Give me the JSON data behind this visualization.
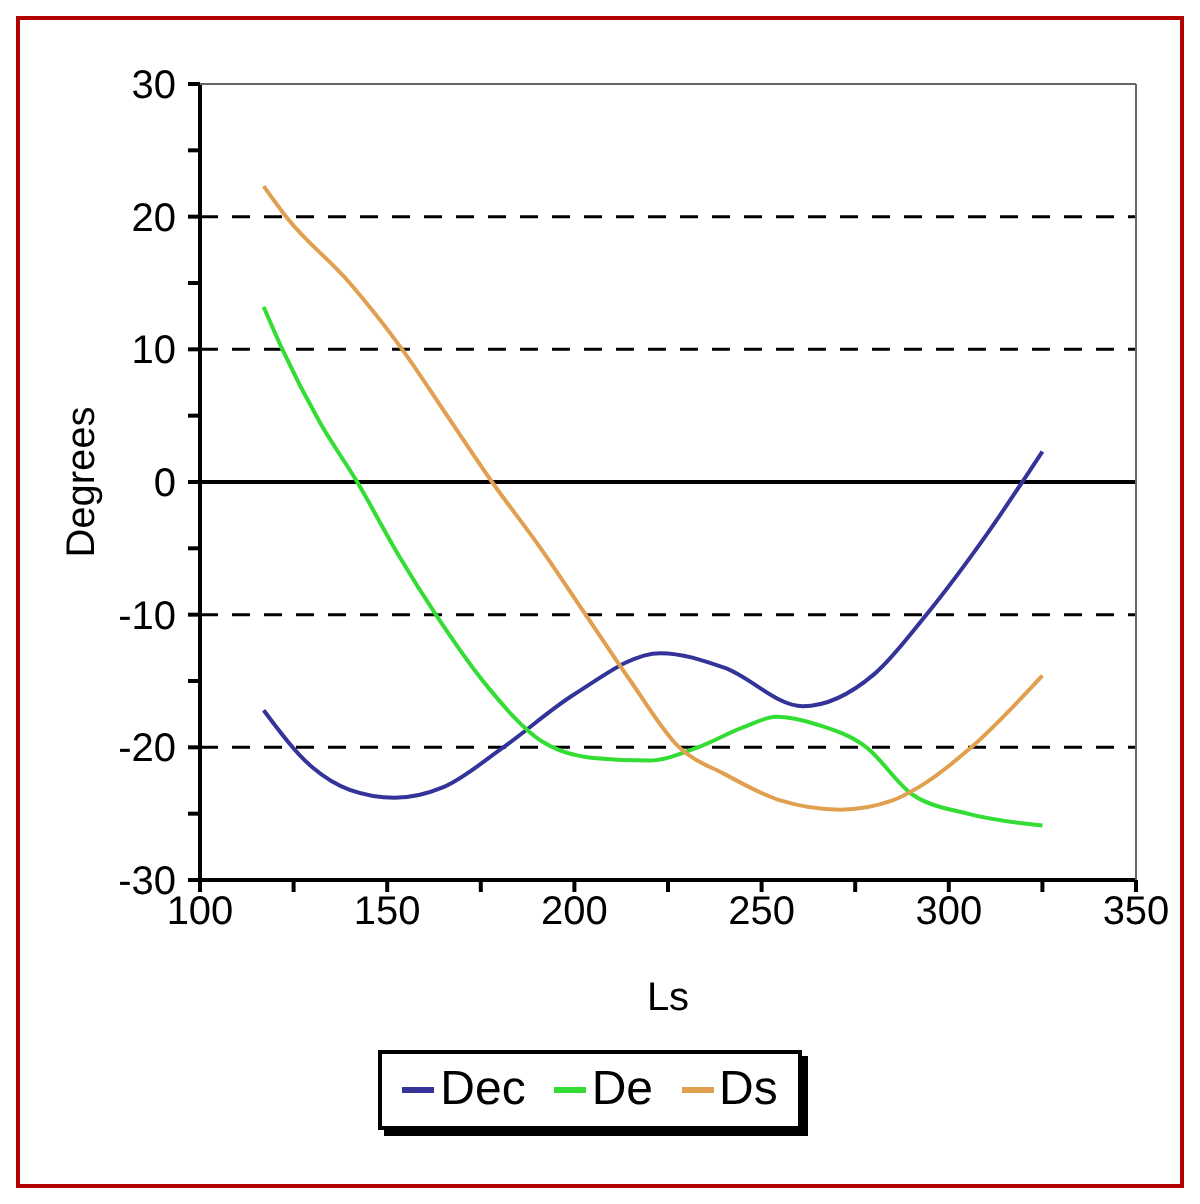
{
  "chart_data": {
    "type": "line",
    "xlabel": "Ls",
    "ylabel": "Degrees",
    "xlim": [
      100,
      350
    ],
    "ylim": [
      -30,
      30
    ],
    "xticks": [
      100,
      {
        "value": 125,
        "label": null
      },
      150,
      {
        "value": 175,
        "label": null
      },
      200,
      {
        "value": 225,
        "label": null
      },
      250,
      {
        "value": 275,
        "label": null
      },
      300,
      {
        "value": 325,
        "label": null
      },
      350
    ],
    "yticks": [
      -30,
      {
        "value": -25,
        "label": null
      },
      -20,
      {
        "value": -15,
        "label": null
      },
      -10,
      {
        "value": -5,
        "label": null
      },
      0,
      {
        "value": 5,
        "label": null
      },
      10,
      {
        "value": 15,
        "label": null
      },
      20,
      {
        "value": 25,
        "label": null
      },
      30
    ],
    "grid": "y",
    "legend": "bottom",
    "marker": "none",
    "line_style": "solid",
    "ref_lines": [
      {
        "axis": "y",
        "value": 0,
        "color": "#000000",
        "line_style": "solid"
      }
    ],
    "series": [
      {
        "name": "Dec",
        "color": "#333399",
        "x": [
          117,
          130,
          140,
          152,
          165,
          181,
          200,
          223,
          240,
          261,
          280,
          294,
          310,
          325
        ],
        "values": [
          -17.2,
          -21.5,
          -23.2,
          -23.8,
          -23,
          -20,
          -16,
          -12.9,
          -14,
          -16.9,
          -14.5,
          -10,
          -4,
          2.3
        ]
      },
      {
        "name": "De",
        "color": "#33dd33",
        "x": [
          117,
          122,
          132,
          142,
          153,
          163,
          177,
          191,
          205,
          220,
          233,
          245,
          254,
          265,
          278,
          290,
          305,
          325
        ],
        "values": [
          13.2,
          10,
          4.5,
          0,
          -5.5,
          -10,
          -15.5,
          -19.5,
          -20.8,
          -21,
          -20,
          -18.5,
          -17.7,
          -18.3,
          -20,
          -23.5,
          -25,
          -25.9
        ]
      },
      {
        "name": "Ds",
        "color": "#e0a050",
        "x": [
          117,
          123,
          140,
          154,
          166,
          178,
          191,
          203,
          215,
          228,
          240,
          255,
          271,
          285,
          292,
          306,
          325
        ],
        "values": [
          22.3,
          20,
          15,
          10,
          5,
          0,
          -5,
          -10,
          -15,
          -20,
          -22,
          -24,
          -24.7,
          -24,
          -23,
          -20,
          -14.6
        ]
      }
    ]
  }
}
